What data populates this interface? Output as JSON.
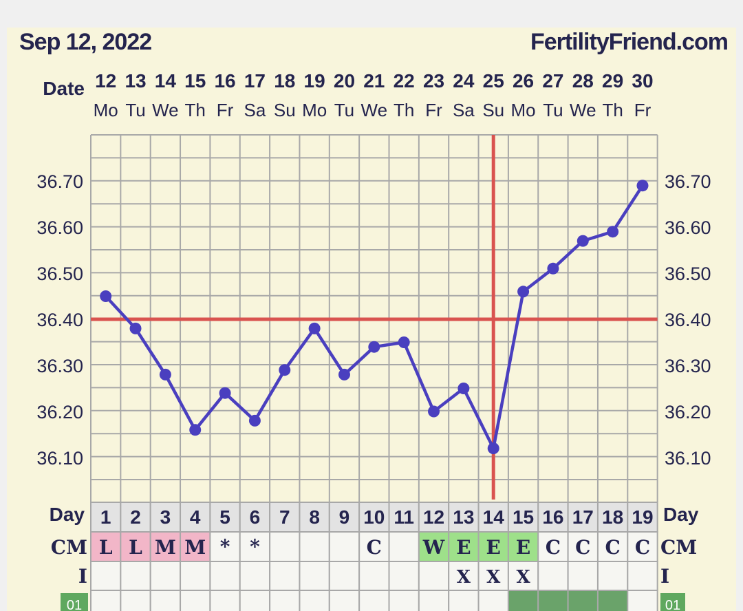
{
  "header": {
    "date": "Sep 12, 2022",
    "brand": "FertilityFriend.com"
  },
  "labels": {
    "date_row": "Date",
    "day_row": "Day",
    "cm_row": "CM",
    "i_row": "I",
    "bottom_row": "01"
  },
  "colors": {
    "line": "#4a3fbf",
    "coverline": "#d9534f",
    "grid": "#a8a8a8",
    "cm_pink": "#f2b6c8",
    "cm_green": "#9ee08a",
    "dark_green_cell": "#6aa36a",
    "bottom_badge": "#5fa85f"
  },
  "chart_data": {
    "type": "line",
    "dates": [
      "12",
      "13",
      "14",
      "15",
      "16",
      "17",
      "18",
      "19",
      "20",
      "21",
      "22",
      "23",
      "24",
      "25",
      "26",
      "27",
      "28",
      "29",
      "30"
    ],
    "weekdays": [
      "Mo",
      "Tu",
      "We",
      "Th",
      "Fr",
      "Sa",
      "Su",
      "Mo",
      "Tu",
      "We",
      "Th",
      "Fr",
      "Sa",
      "Su",
      "Mo",
      "Tu",
      "We",
      "Th",
      "Fr"
    ],
    "cycle_days": [
      "1",
      "2",
      "3",
      "4",
      "5",
      "6",
      "7",
      "8",
      "9",
      "10",
      "11",
      "12",
      "13",
      "14",
      "15",
      "16",
      "17",
      "18",
      "19"
    ],
    "temperatures": [
      36.45,
      36.38,
      36.28,
      36.16,
      36.24,
      36.18,
      36.29,
      36.38,
      36.28,
      36.34,
      36.35,
      36.2,
      36.25,
      36.12,
      36.46,
      36.51,
      36.57,
      36.59,
      36.69
    ],
    "y_ticks": [
      "36.10",
      "36.20",
      "36.30",
      "36.40",
      "36.50",
      "36.60",
      "36.70"
    ],
    "ylim": [
      36.0,
      36.8
    ],
    "coverline": 36.4,
    "ovulation_day_index": 13,
    "cm": [
      "L",
      "L",
      "M",
      "M",
      "*",
      "*",
      "",
      "",
      "",
      "C",
      "",
      "W",
      "E",
      "E",
      "E",
      "C",
      "C",
      "C",
      "C"
    ],
    "cm_color": [
      "pink",
      "pink",
      "pink",
      "pink",
      "",
      "",
      "",
      "",
      "",
      "",
      "",
      "green",
      "green",
      "green",
      "green",
      "",
      "",
      "",
      ""
    ],
    "i": [
      "",
      "",
      "",
      "",
      "",
      "",
      "",
      "",
      "",
      "",
      "",
      "",
      "X",
      "X",
      "X",
      "",
      "",
      "",
      ""
    ],
    "bottom_cells": [
      "light",
      "light",
      "light",
      "light",
      "light",
      "light",
      "light",
      "light",
      "light",
      "light",
      "light",
      "light",
      "light",
      "light",
      "dark",
      "dark",
      "dark",
      "dark",
      "light"
    ]
  }
}
